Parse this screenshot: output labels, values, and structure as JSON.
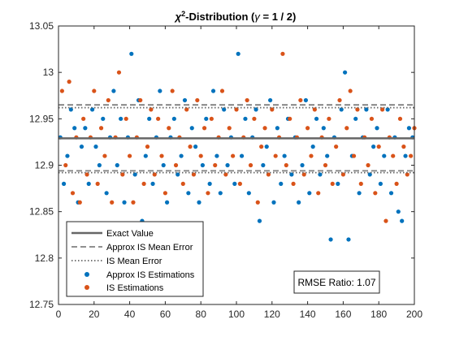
{
  "chart_data": {
    "type": "scatter",
    "title_parts": {
      "chi": "χ",
      "sup": "2",
      "main": "-Distribution (",
      "gamma": "γ",
      "rest": " = 1 / 2)"
    },
    "xlim": [
      0,
      200
    ],
    "ylim": [
      12.75,
      13.05
    ],
    "x_ticks": [
      0,
      20,
      40,
      60,
      80,
      100,
      120,
      140,
      160,
      180,
      200
    ],
    "y_ticks": [
      12.75,
      12.8,
      12.85,
      12.9,
      12.95,
      13,
      13.05
    ],
    "y_tick_labels": [
      "12.75",
      "12.8",
      "12.85",
      "12.9",
      "12.95",
      "13",
      "13.05"
    ],
    "exact_value": 12.929,
    "approx_is_mean_error_band": [
      12.894,
      12.965
    ],
    "is_mean_error_band": [
      12.892,
      12.962
    ],
    "colors": {
      "approx_is": "#0072BD",
      "is": "#D95319",
      "exact_line": "#666666",
      "dashed_line": "#808080",
      "dotted_line": "#666666"
    },
    "legend": {
      "placement": "bottom-left",
      "entries": [
        {
          "key": "exact",
          "label": "Exact Value"
        },
        {
          "key": "approx_mean",
          "label": "Approx IS Mean Error"
        },
        {
          "key": "is_mean",
          "label": "IS Mean Error"
        },
        {
          "key": "approx_is",
          "label": "Approx IS Estimations"
        },
        {
          "key": "is",
          "label": "IS Estimations"
        }
      ]
    },
    "rmse_label": "RMSE Ratio: 1.07",
    "series": [
      {
        "name": "Approx IS Estimations",
        "x": [
          1,
          3,
          5,
          7,
          9,
          11,
          13,
          15,
          17,
          19,
          21,
          23,
          25,
          27,
          29,
          31,
          33,
          35,
          37,
          39,
          41,
          43,
          45,
          47,
          49,
          51,
          53,
          55,
          57,
          59,
          61,
          63,
          65,
          67,
          69,
          71,
          73,
          75,
          77,
          79,
          81,
          83,
          85,
          87,
          89,
          91,
          93,
          95,
          97,
          99,
          101,
          103,
          105,
          107,
          109,
          111,
          113,
          115,
          117,
          119,
          121,
          123,
          125,
          127,
          129,
          131,
          133,
          135,
          137,
          139,
          141,
          143,
          145,
          147,
          149,
          151,
          153,
          155,
          157,
          159,
          161,
          163,
          165,
          167,
          169,
          171,
          173,
          175,
          177,
          179,
          181,
          183,
          185,
          187,
          189,
          191,
          193,
          195,
          197,
          199
        ],
        "y": [
          12.93,
          12.88,
          12.91,
          12.96,
          12.94,
          12.86,
          12.92,
          12.94,
          12.88,
          12.96,
          12.92,
          12.9,
          12.95,
          12.87,
          12.93,
          12.98,
          12.9,
          12.95,
          12.86,
          12.93,
          13.02,
          12.89,
          12.97,
          12.84,
          12.91,
          12.95,
          12.88,
          12.93,
          12.98,
          12.9,
          12.86,
          12.93,
          12.95,
          12.89,
          12.91,
          12.97,
          12.87,
          12.94,
          12.92,
          12.86,
          12.9,
          12.95,
          12.88,
          12.98,
          12.91,
          12.87,
          12.96,
          12.9,
          12.93,
          12.88,
          13.02,
          12.91,
          12.95,
          12.87,
          12.93,
          12.96,
          12.84,
          12.9,
          12.92,
          12.97,
          12.86,
          12.94,
          12.88,
          12.91,
          12.95,
          12.89,
          12.93,
          12.86,
          12.9,
          12.97,
          12.87,
          12.92,
          12.95,
          12.89,
          12.94,
          12.91,
          12.82,
          12.93,
          12.88,
          12.96,
          13.0,
          12.82,
          12.91,
          12.95,
          12.87,
          12.93,
          12.96,
          12.89,
          12.92,
          12.94,
          12.88,
          12.91,
          12.96,
          12.87,
          12.93,
          12.85,
          12.84,
          12.91,
          12.94,
          12.93
        ]
      },
      {
        "name": "IS Estimations",
        "x": [
          2,
          4,
          6,
          8,
          10,
          12,
          14,
          16,
          18,
          20,
          22,
          24,
          26,
          28,
          30,
          32,
          34,
          36,
          38,
          40,
          42,
          44,
          46,
          48,
          50,
          52,
          54,
          56,
          58,
          60,
          62,
          64,
          66,
          68,
          70,
          72,
          74,
          76,
          78,
          80,
          82,
          84,
          86,
          88,
          90,
          92,
          94,
          96,
          98,
          100,
          102,
          104,
          106,
          108,
          110,
          112,
          114,
          116,
          118,
          120,
          122,
          124,
          126,
          128,
          130,
          132,
          134,
          136,
          138,
          140,
          142,
          144,
          146,
          148,
          150,
          152,
          154,
          156,
          158,
          160,
          162,
          164,
          166,
          168,
          170,
          172,
          174,
          176,
          178,
          180,
          182,
          184,
          186,
          188,
          190,
          192,
          194,
          196,
          198,
          200
        ],
        "y": [
          12.98,
          12.9,
          12.99,
          12.87,
          12.93,
          12.86,
          12.95,
          12.89,
          12.93,
          12.98,
          12.88,
          12.94,
          12.91,
          12.97,
          12.86,
          12.93,
          13.0,
          12.89,
          12.95,
          12.91,
          12.86,
          12.93,
          12.97,
          12.88,
          12.92,
          12.96,
          12.89,
          12.95,
          12.91,
          12.87,
          12.94,
          12.98,
          12.9,
          12.93,
          12.88,
          12.96,
          12.92,
          12.89,
          12.97,
          12.91,
          12.94,
          12.87,
          12.95,
          12.9,
          12.93,
          12.98,
          12.89,
          12.94,
          12.91,
          12.96,
          12.88,
          12.93,
          12.97,
          12.9,
          12.95,
          12.86,
          12.92,
          12.94,
          12.89,
          12.96,
          12.91,
          12.93,
          13.02,
          12.9,
          12.95,
          12.88,
          12.93,
          12.97,
          12.89,
          12.94,
          12.91,
          12.96,
          12.87,
          12.93,
          12.9,
          12.95,
          12.88,
          12.92,
          12.97,
          12.89,
          12.94,
          12.98,
          12.91,
          12.96,
          12.88,
          12.93,
          12.9,
          12.95,
          12.87,
          12.92,
          12.96,
          12.84,
          12.93,
          12.91,
          12.88,
          12.95,
          12.92,
          12.89,
          12.91,
          12.94
        ]
      }
    ]
  }
}
